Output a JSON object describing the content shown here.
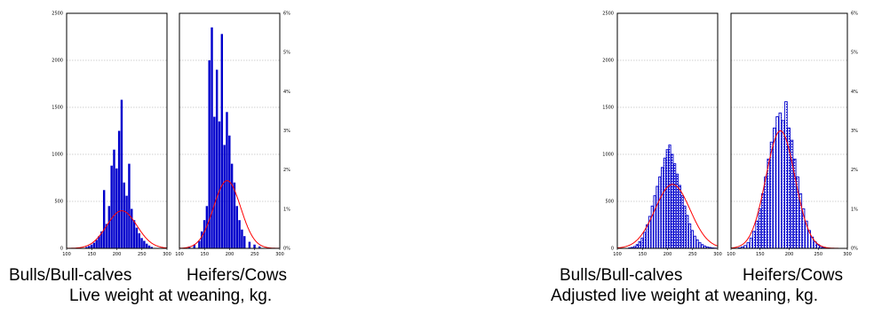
{
  "colors": {
    "bars": "#0000cc",
    "curve": "#ff0000",
    "axis": "#000000",
    "grid": "#a0a0a0"
  },
  "figures": [
    {
      "title": "Live weight at weaning, kg.",
      "group_labels": [
        "Bulls/Bull-calves",
        "Heifers/Cows"
      ]
    },
    {
      "title": "Adjusted live weight at weaning, kg.",
      "group_labels": [
        "Bulls/Bull-calves",
        "Heifers/Cows"
      ]
    }
  ],
  "chart_data": [
    {
      "type": "bar",
      "title": "Live weight at weaning, kg. — Bulls/Bull-calves",
      "left_ticks": [
        "0",
        "500",
        "1000",
        "1500",
        "2000",
        "2500"
      ],
      "x_ticks": [
        "100",
        "150",
        "200",
        "250",
        "300"
      ],
      "ylim": [
        0,
        2500
      ],
      "xlim": [
        100,
        300
      ],
      "grid": true,
      "bar_style": "solid",
      "x": [
        140,
        145,
        150,
        155,
        160,
        165,
        170,
        175,
        180,
        185,
        190,
        195,
        200,
        205,
        210,
        215,
        220,
        225,
        230,
        235,
        240,
        245,
        250,
        255,
        260,
        265,
        270
      ],
      "values": [
        15,
        25,
        40,
        60,
        90,
        130,
        180,
        620,
        260,
        450,
        880,
        1050,
        850,
        1250,
        1580,
        700,
        560,
        900,
        420,
        300,
        220,
        160,
        110,
        80,
        50,
        30,
        15
      ],
      "curve": {
        "mean": 210,
        "sd": 30,
        "peak": 400
      }
    },
    {
      "type": "bar",
      "title": "Live weight at weaning, kg. — Heifers/Cows",
      "right_ticks": [
        "0%",
        "1%",
        "2%",
        "3%",
        "4%",
        "5%",
        "6%"
      ],
      "x_ticks": [
        "100",
        "150",
        "200",
        "250",
        "300"
      ],
      "ylim": [
        0,
        2500
      ],
      "xlim": [
        100,
        300
      ],
      "grid": true,
      "bar_style": "solid",
      "x": [
        120,
        130,
        140,
        145,
        150,
        155,
        160,
        165,
        170,
        175,
        180,
        185,
        190,
        195,
        200,
        205,
        210,
        215,
        220,
        225,
        230,
        240,
        250,
        260
      ],
      "values": [
        20,
        40,
        80,
        180,
        300,
        450,
        2000,
        2350,
        1400,
        1900,
        1350,
        2280,
        1100,
        1450,
        1200,
        900,
        700,
        450,
        300,
        200,
        130,
        70,
        40,
        20
      ],
      "curve": {
        "mean": 195,
        "sd": 27,
        "peak": 720
      }
    },
    {
      "type": "bar",
      "title": "Adjusted live weight at weaning, kg. — Bulls/Bull-calves",
      "left_ticks": [
        "0",
        "500",
        "1000",
        "1500",
        "2000",
        "2500"
      ],
      "x_ticks": [
        "100",
        "150",
        "200",
        "250",
        "300"
      ],
      "ylim": [
        0,
        2500
      ],
      "xlim": [
        100,
        300
      ],
      "grid": true,
      "bar_style": "hatched",
      "x": [
        125,
        130,
        135,
        140,
        145,
        150,
        155,
        160,
        165,
        170,
        175,
        180,
        185,
        190,
        195,
        200,
        205,
        210,
        215,
        220,
        225,
        230,
        235,
        240,
        245,
        250,
        255,
        260,
        265,
        270,
        275,
        280,
        285,
        290,
        295
      ],
      "values": [
        5,
        10,
        20,
        40,
        70,
        110,
        170,
        250,
        340,
        450,
        560,
        660,
        760,
        860,
        960,
        1050,
        1100,
        1000,
        900,
        790,
        670,
        560,
        450,
        350,
        260,
        190,
        130,
        90,
        60,
        40,
        25,
        15,
        10,
        5,
        3
      ],
      "curve": {
        "mean": 210,
        "sd": 35,
        "peak": 680
      }
    },
    {
      "type": "bar",
      "title": "Adjusted live weight at weaning, kg. — Heifers/Cows",
      "right_ticks": [
        "0%",
        "1%",
        "2%",
        "3%",
        "4%",
        "5%",
        "6%"
      ],
      "x_ticks": [
        "100",
        "150",
        "200",
        "250",
        "300"
      ],
      "ylim": [
        0,
        2500
      ],
      "xlim": [
        100,
        300
      ],
      "grid": true,
      "bar_style": "hatched",
      "x": [
        115,
        120,
        125,
        130,
        135,
        140,
        145,
        150,
        155,
        160,
        165,
        170,
        175,
        180,
        185,
        190,
        195,
        200,
        205,
        210,
        215,
        220,
        225,
        230,
        235,
        240,
        245,
        250,
        255,
        260,
        265
      ],
      "values": [
        5,
        15,
        30,
        60,
        110,
        180,
        290,
        420,
        580,
        760,
        950,
        1130,
        1280,
        1400,
        1440,
        1360,
        1560,
        1280,
        1150,
        950,
        760,
        580,
        420,
        290,
        190,
        120,
        70,
        40,
        20,
        10,
        5
      ],
      "curve": {
        "mean": 185,
        "sd": 25,
        "peak": 1250
      }
    }
  ]
}
